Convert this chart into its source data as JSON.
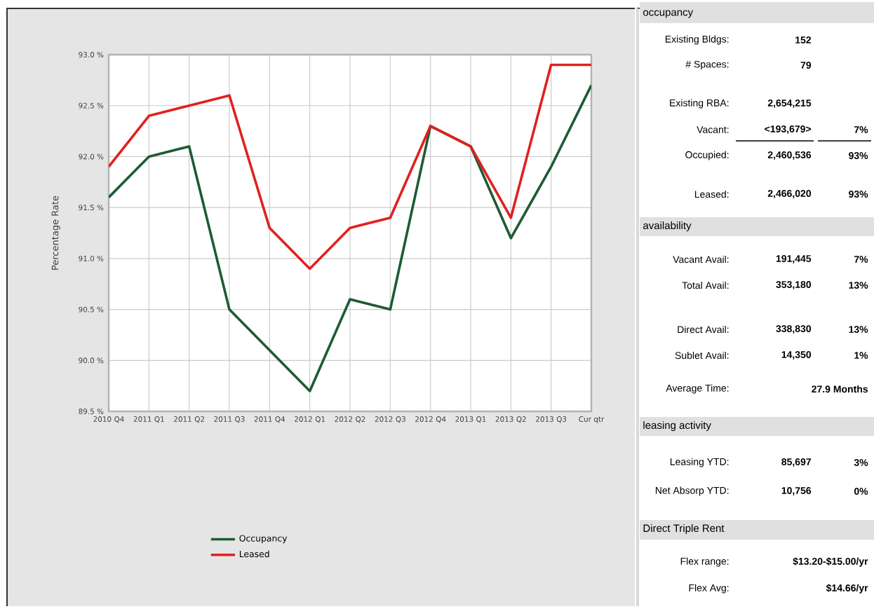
{
  "chart_data": [
    {
      "type": "line",
      "ylabel": "Percentage Rate",
      "categories": [
        "2010 Q4",
        "2011 Q1",
        "2011 Q2",
        "2011 Q3",
        "2011 Q4",
        "2012 Q1",
        "2012 Q2",
        "2012 Q3",
        "2012 Q4",
        "2013 Q1",
        "2013 Q2",
        "2013 Q3",
        "Cur qtr"
      ],
      "series": [
        {
          "name": "Occupancy",
          "color": "#1e5b34",
          "values": [
            91.6,
            92.0,
            92.1,
            90.5,
            90.1,
            89.7,
            90.6,
            90.5,
            92.3,
            92.1,
            91.2,
            91.9,
            92.7
          ]
        },
        {
          "name": "Leased",
          "color": "#e0211f",
          "values": [
            91.9,
            92.4,
            92.5,
            92.6,
            91.3,
            90.9,
            91.3,
            91.4,
            92.3,
            92.1,
            91.4,
            92.9,
            92.9
          ]
        }
      ],
      "ylim": [
        89.5,
        93.0
      ],
      "yticks": [
        {
          "value": 89.5,
          "label": "89.5 %"
        },
        {
          "value": 90.0,
          "label": "90.0 %"
        },
        {
          "value": 90.5,
          "label": "90.5 %"
        },
        {
          "value": 91.0,
          "label": "91.0 %"
        },
        {
          "value": 91.5,
          "label": "91.5 %"
        },
        {
          "value": 92.0,
          "label": "92.0 %"
        },
        {
          "value": 92.5,
          "label": "92.5 %"
        },
        {
          "value": 93.0,
          "label": "93.0 %"
        }
      ],
      "grid": true,
      "legend": "bottom",
      "marker": "none",
      "line_style": "solid"
    },
    {
      "type": "other",
      "annotations": [
        "occupancy",
        "Existing Bldgs:",
        "152",
        "# Spaces:",
        "79",
        "Existing RBA:",
        "2,654,215",
        "Vacant:",
        "<193,679>",
        "7%",
        "Occupied:",
        "2,460,536",
        "93%",
        "Leased:",
        "2,466,020",
        "93%",
        "availability",
        "Vacant Avail:",
        "191,445",
        "7%",
        "Total Avail:",
        "353,180",
        "13%",
        "Direct Avail:",
        "338,830",
        "13%",
        "Sublet Avail:",
        "14,350",
        "1%",
        "Average Time:",
        "27.9 Months",
        "leasing activity",
        "Leasing YTD:",
        "85,697",
        "3%",
        "Net Absorp YTD:",
        "10,756",
        "0%",
        "Direct Triple Rent",
        "Flex range:",
        "$13.20-$15.00/yr",
        "Flex Avg:",
        "$14.66/yr"
      ]
    }
  ]
}
